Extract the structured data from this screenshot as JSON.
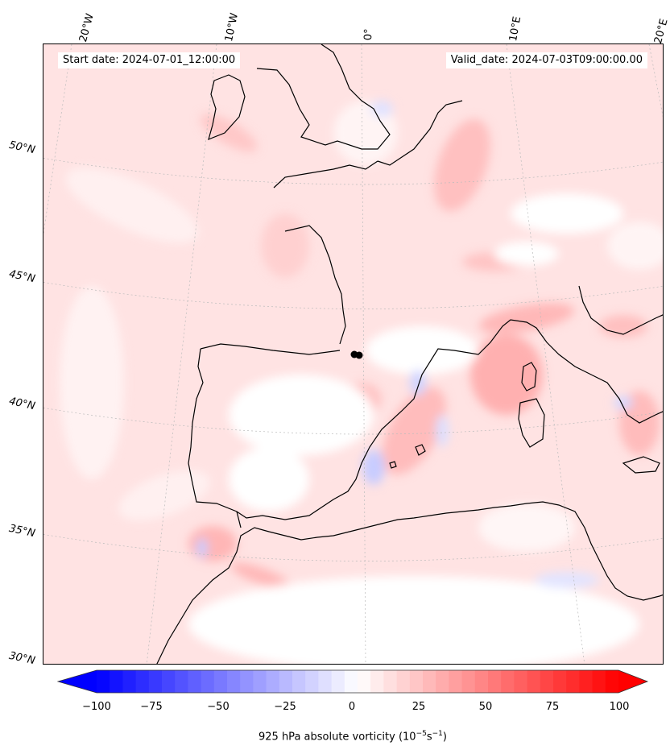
{
  "header": {
    "start_date": "Start date: 2024-07-01_12:00:00",
    "valid_date": "Valid_date: 2024-07-03T09:00:00.00"
  },
  "map": {
    "lon_labels": [
      "20°W",
      "10°W",
      "0°",
      "10°E",
      "20°E"
    ],
    "lat_labels": [
      "50°N",
      "45°N",
      "40°N",
      "35°N",
      "30°N"
    ],
    "field": "925 hPa absolute vorticity",
    "colors": {
      "positive": "#ff0000",
      "negative": "#0000ff",
      "coast": "#000000"
    }
  },
  "colorbar": {
    "ticks": [
      "−100",
      "−75",
      "−50",
      "−25",
      "0",
      "25",
      "50",
      "75",
      "100"
    ],
    "label_text": "925 hPa absolute vorticity (10",
    "label_exp1": "−5",
    "label_mid": "s",
    "label_exp2": "−1",
    "label_end": ")",
    "range": [
      -100,
      100
    ],
    "extend": "both"
  }
}
